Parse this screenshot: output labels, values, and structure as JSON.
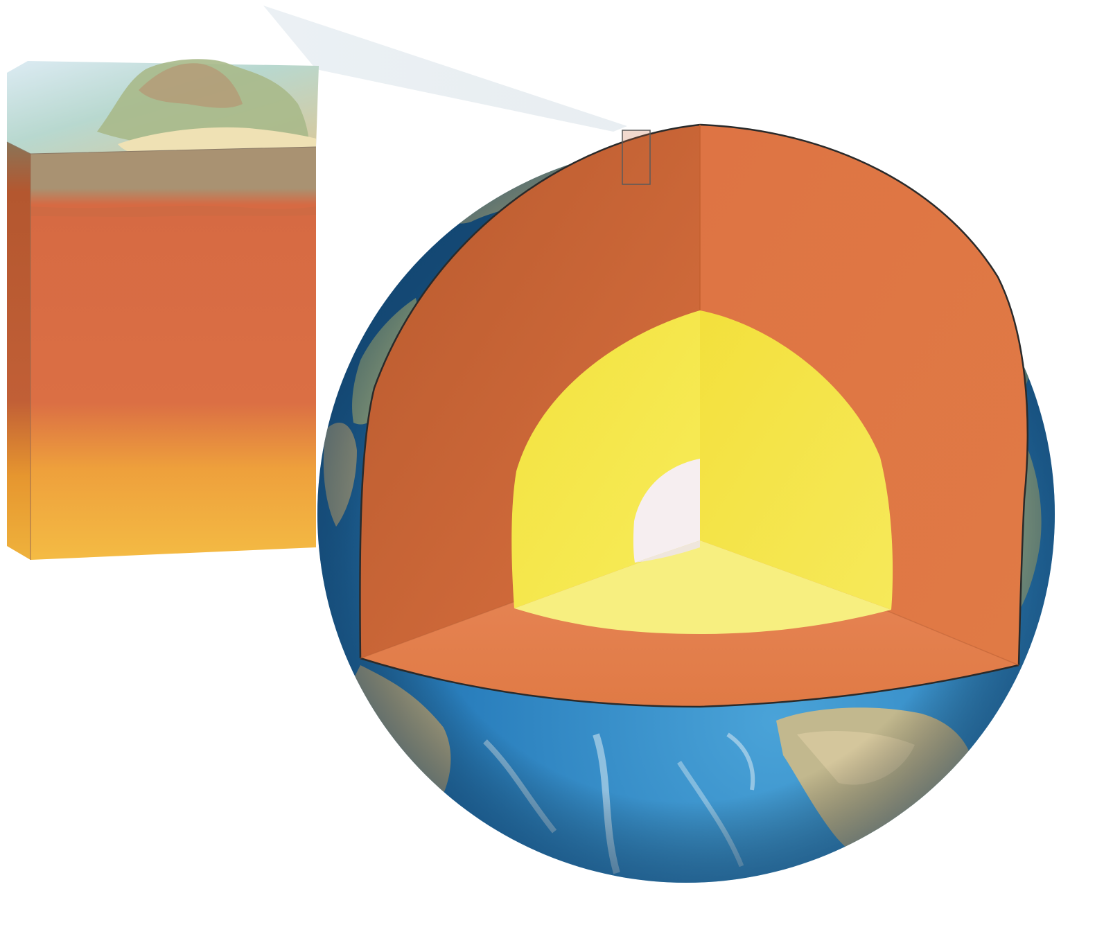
{
  "diagram": {
    "colors": {
      "background": "#ffffff",
      "ocean_deep": "#1f6fae",
      "ocean_light": "#4aa3d8",
      "land": "#c9b98a",
      "land_green": "#8fb27a",
      "crust_outline": "#2a2a2a",
      "upper_mantle": "#d9703f",
      "lower_mantle": "#e07a45",
      "outer_core": "#f5e64a",
      "outer_core_floor": "#f7ef80",
      "inner_core": "#f6eef0",
      "block_sky": "#dcebf3",
      "block_sediment": "#efe1b4",
      "block_crust": "#a99272",
      "block_mantle_top": "#d66a43",
      "block_mantle_bottom": "#f2b23a",
      "zoom_wedge": "#dfe7ec"
    }
  }
}
